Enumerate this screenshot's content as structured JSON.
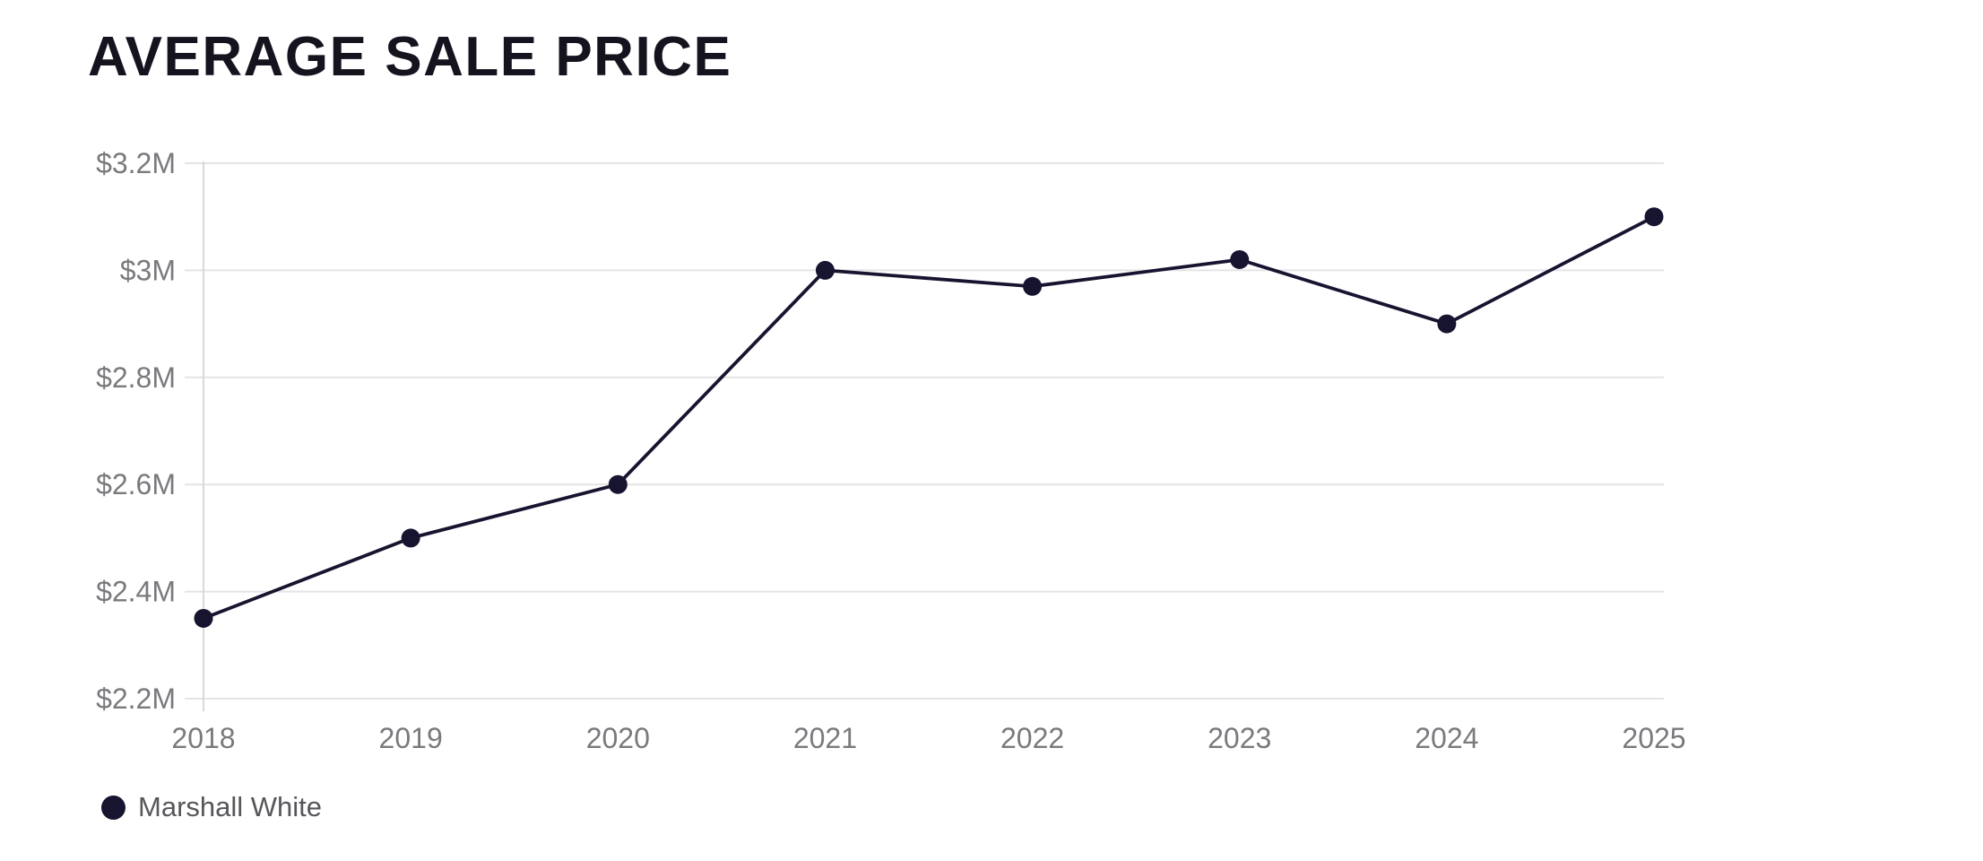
{
  "chart_data": {
    "type": "line",
    "title": "AVERAGE SALE PRICE",
    "categories": [
      "2018",
      "2019",
      "2020",
      "2021",
      "2022",
      "2023",
      "2024",
      "2025"
    ],
    "series": [
      {
        "name": "Marshall White",
        "color": "#171430",
        "values": [
          2.35,
          2.5,
          2.6,
          3.0,
          2.97,
          3.02,
          2.9,
          3.1
        ]
      }
    ],
    "ylim": [
      2.2,
      3.2
    ],
    "yticks": [
      2.2,
      2.4,
      2.6,
      2.8,
      3.0,
      3.2
    ],
    "ytick_labels": [
      "$2.2M",
      "$2.4M",
      "$2.6M",
      "$2.8M",
      "$3M",
      "$3.2M"
    ],
    "xlabel": "",
    "ylabel": "",
    "grid": true,
    "legend_position": "bottom-left"
  },
  "legend": {
    "items": [
      {
        "label": "Marshall White",
        "color": "#171430"
      }
    ]
  },
  "colors": {
    "series": "#171430",
    "grid": "#e4e4e6",
    "axis": "#d9d9db",
    "tick_label": "#7a7a7e",
    "legend_label": "#57575b",
    "title": "#15131e",
    "background": "#ffffff"
  }
}
